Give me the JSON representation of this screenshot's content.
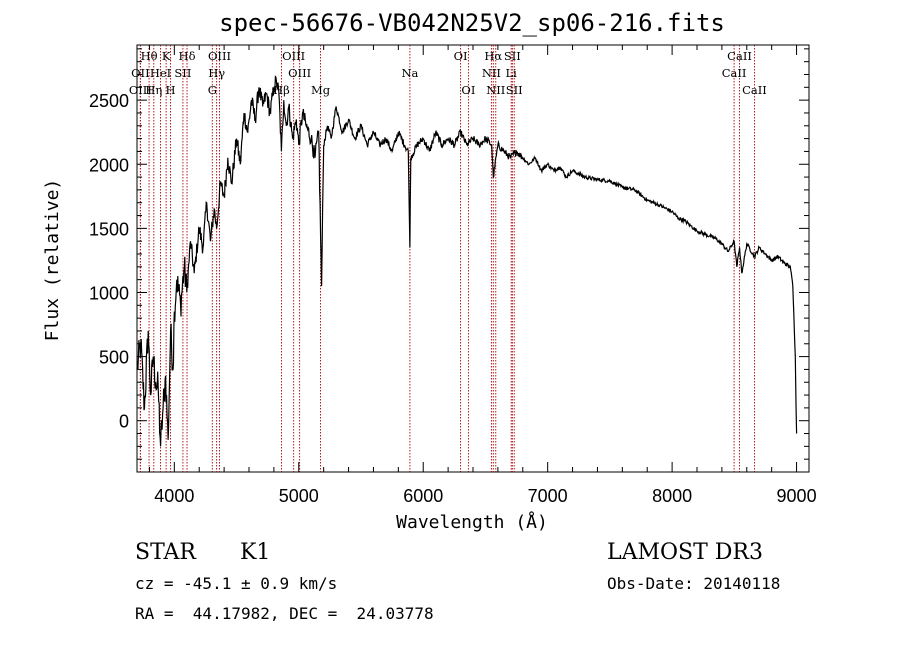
{
  "chart_data": {
    "type": "line",
    "title": "spec-56676-VB042N25V2_sp06-216.fits",
    "xlabel": "Wavelength (Å)",
    "ylabel": "Flux (relative)",
    "xlim": [
      3700,
      9100
    ],
    "ylim": [
      -400,
      2930
    ],
    "x_ticks": [
      4000,
      5000,
      6000,
      7000,
      8000,
      9000
    ],
    "y_ticks": [
      0,
      500,
      1000,
      1500,
      2000,
      2500
    ],
    "series": [
      {
        "name": "spectrum",
        "x": [
          3700,
          3730,
          3760,
          3790,
          3810,
          3830,
          3850,
          3870,
          3890,
          3910,
          3930,
          3950,
          3970,
          3990,
          4000,
          4020,
          4050,
          4080,
          4100,
          4130,
          4160,
          4200,
          4230,
          4260,
          4290,
          4320,
          4340,
          4370,
          4400,
          4430,
          4460,
          4500,
          4530,
          4560,
          4590,
          4620,
          4650,
          4680,
          4710,
          4740,
          4770,
          4800,
          4820,
          4840,
          4860,
          4880,
          4900,
          4920,
          4950,
          4980,
          5000,
          5030,
          5060,
          5100,
          5130,
          5160,
          5183,
          5200,
          5230,
          5260,
          5300,
          5350,
          5400,
          5450,
          5500,
          5550,
          5600,
          5650,
          5700,
          5750,
          5800,
          5850,
          5880,
          5893,
          5900,
          5950,
          6000,
          6050,
          6100,
          6150,
          6200,
          6250,
          6300,
          6350,
          6400,
          6450,
          6500,
          6550,
          6563,
          6600,
          6650,
          6700,
          6750,
          6800,
          6850,
          6900,
          6950,
          7000,
          7050,
          7100,
          7150,
          7200,
          7300,
          7400,
          7500,
          7600,
          7700,
          7800,
          7900,
          8000,
          8050,
          8100,
          8150,
          8200,
          8250,
          8300,
          8350,
          8400,
          8450,
          8498,
          8520,
          8542,
          8560,
          8600,
          8662,
          8700,
          8750,
          8800,
          8850,
          8900,
          8950,
          8970,
          8990,
          9000
        ],
        "y": [
          400,
          600,
          100,
          700,
          200,
          500,
          300,
          250,
          -200,
          100,
          350,
          -150,
          700,
          400,
          850,
          1100,
          900,
          1200,
          1000,
          1400,
          1150,
          1500,
          1350,
          1700,
          1400,
          1650,
          1500,
          1850,
          1750,
          2050,
          1850,
          2200,
          2000,
          2400,
          2250,
          2500,
          2350,
          2600,
          2450,
          2550,
          2400,
          2600,
          2650,
          2550,
          2100,
          2500,
          2300,
          2450,
          2200,
          2350,
          2150,
          2400,
          2300,
          2200,
          2050,
          2250,
          1050,
          2150,
          2300,
          2200,
          2450,
          2250,
          2350,
          2200,
          2300,
          2150,
          2250,
          2150,
          2200,
          2100,
          2250,
          2150,
          2100,
          1350,
          2050,
          2150,
          2200,
          2100,
          2250,
          2150,
          2200,
          2150,
          2250,
          2150,
          2200,
          2150,
          2200,
          2150,
          1900,
          2150,
          2100,
          2050,
          2100,
          2050,
          2000,
          2050,
          1950,
          2000,
          1950,
          1980,
          1900,
          1950,
          1900,
          1880,
          1870,
          1820,
          1800,
          1720,
          1680,
          1630,
          1580,
          1560,
          1520,
          1480,
          1460,
          1440,
          1420,
          1380,
          1320,
          1400,
          1200,
          1350,
          1150,
          1380,
          1280,
          1350,
          1300,
          1250,
          1280,
          1230,
          1200,
          1050,
          500,
          -100
        ]
      }
    ],
    "spectral_lines": [
      {
        "label": "Hθ",
        "x": 3797,
        "row": 1
      },
      {
        "label": "OII",
        "x": 3727,
        "row": 2
      },
      {
        "label": "OIII",
        "x": 3727,
        "row": 3
      },
      {
        "label": "K",
        "x": 3934,
        "row": 1
      },
      {
        "label": "HeI",
        "x": 3889,
        "row": 2
      },
      {
        "label": "Hη",
        "x": 3835,
        "row": 3
      },
      {
        "label": "H",
        "x": 3969,
        "row": 3
      },
      {
        "label": "SII",
        "x": 4069,
        "row": 2
      },
      {
        "label": "Hδ",
        "x": 4102,
        "row": 1
      },
      {
        "label": "OIII",
        "x": 4363,
        "row": 1
      },
      {
        "label": "Hγ",
        "x": 4340,
        "row": 2
      },
      {
        "label": "G",
        "x": 4305,
        "row": 3
      },
      {
        "label": "OIII",
        "x": 4959,
        "row": 1
      },
      {
        "label": "OIII",
        "x": 5007,
        "row": 2
      },
      {
        "label": "Hβ",
        "x": 4861,
        "row": 3
      },
      {
        "label": "Mg",
        "x": 5175,
        "row": 3
      },
      {
        "label": "Na",
        "x": 5893,
        "row": 2
      },
      {
        "label": "OI",
        "x": 6300,
        "row": 1
      },
      {
        "label": "OI",
        "x": 6363,
        "row": 3
      },
      {
        "label": "Hα",
        "x": 6563,
        "row": 1
      },
      {
        "label": "SII",
        "x": 6716,
        "row": 1
      },
      {
        "label": "NII",
        "x": 6548,
        "row": 2
      },
      {
        "label": "Li",
        "x": 6707,
        "row": 2
      },
      {
        "label": "NII",
        "x": 6583,
        "row": 3
      },
      {
        "label": "SII",
        "x": 6731,
        "row": 3
      },
      {
        "label": "CaII",
        "x": 8542,
        "row": 1
      },
      {
        "label": "CaII",
        "x": 8498,
        "row": 2
      },
      {
        "label": "CaII",
        "x": 8662,
        "row": 3
      }
    ]
  },
  "info": {
    "object_class": "STAR",
    "subclass": "K1",
    "survey": "LAMOST DR3",
    "redshift": "cz = -45.1 ± 0.9 km/s",
    "obs_date": "Obs-Date: 20140118",
    "coords": "RA =  44.17982, DEC =  24.03778"
  },
  "colors": {
    "line_marker": "#b00000",
    "spectrum": "#000000"
  }
}
